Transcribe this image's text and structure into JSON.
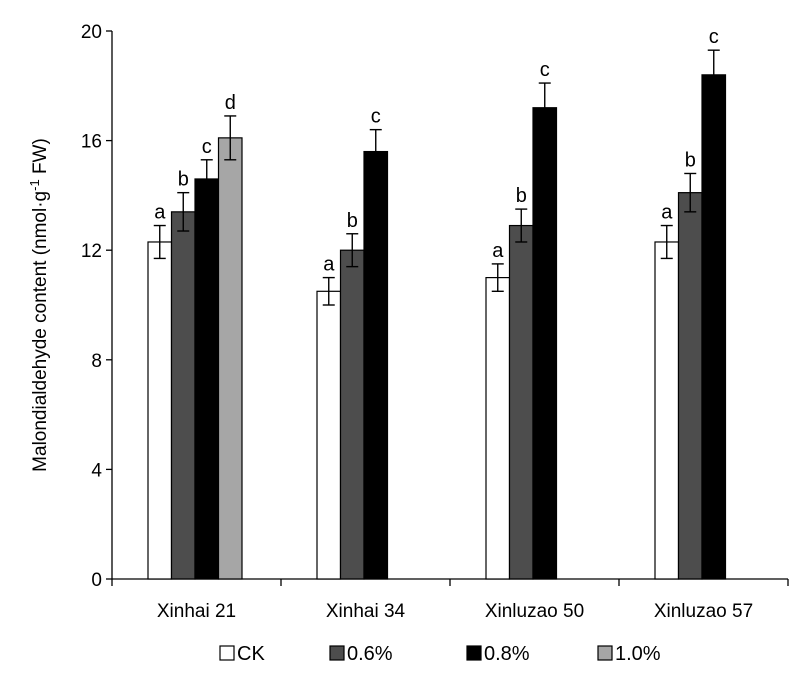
{
  "chart_data": {
    "type": "bar",
    "title": "",
    "xlabel": "",
    "ylabel_prefix": "Malondialdehyde content (nmol·g",
    "ylabel_sup": "-1",
    "ylabel_suffix": " FW)",
    "ylim": [
      0,
      20
    ],
    "yticks": [
      0,
      4,
      8,
      12,
      16,
      20
    ],
    "grid": false,
    "legend_position": "bottom",
    "categories": [
      "Xinhai 21",
      "Xinhai 34",
      "Xinluzao 50",
      "Xinluzao 57"
    ],
    "series": [
      {
        "name": "CK",
        "color": "#ffffff",
        "values": [
          12.3,
          10.5,
          11.0,
          12.3
        ],
        "errors": [
          0.6,
          0.5,
          0.5,
          0.6
        ],
        "letters": [
          "a",
          "a",
          "a",
          "a"
        ]
      },
      {
        "name": "0.6%",
        "color": "#4d4d4d",
        "values": [
          13.4,
          12.0,
          12.9,
          14.1
        ],
        "errors": [
          0.7,
          0.6,
          0.6,
          0.7
        ],
        "letters": [
          "b",
          "b",
          "b",
          "b"
        ]
      },
      {
        "name": "0.8%",
        "color": "#000000",
        "values": [
          14.6,
          15.6,
          17.2,
          18.4
        ],
        "errors": [
          0.7,
          0.8,
          0.9,
          0.9
        ],
        "letters": [
          "c",
          "c",
          "c",
          "c"
        ]
      },
      {
        "name": "1.0%",
        "color": "#a6a6a6",
        "values": [
          16.1,
          null,
          null,
          null
        ],
        "errors": [
          0.8,
          null,
          null,
          null
        ],
        "letters": [
          "d",
          null,
          null,
          null
        ]
      }
    ]
  }
}
